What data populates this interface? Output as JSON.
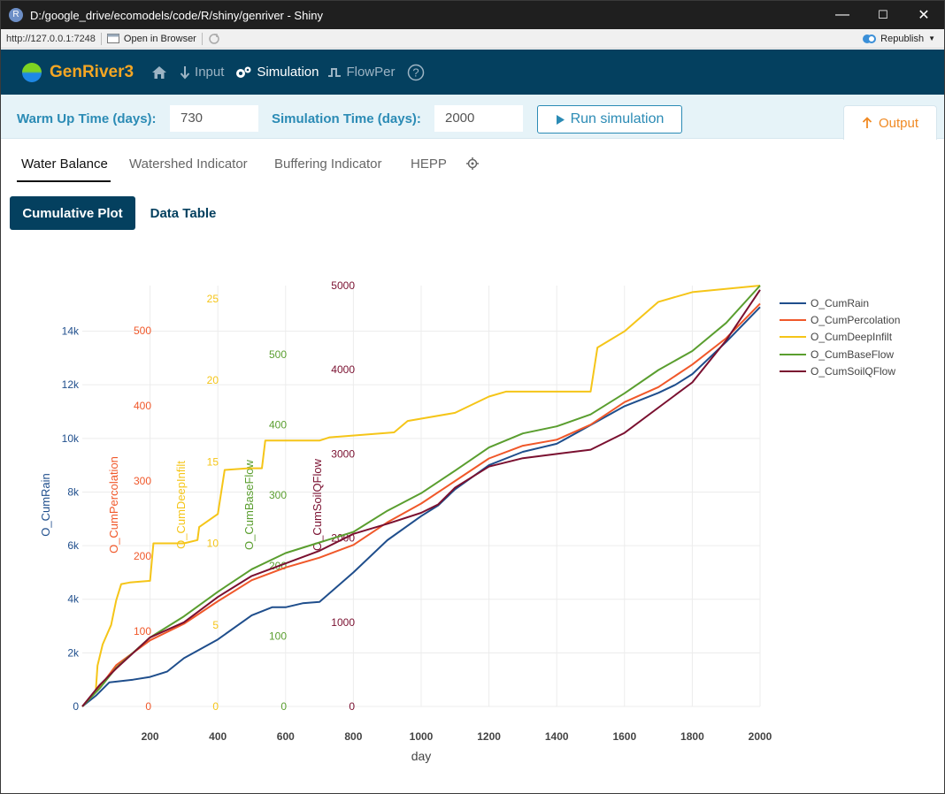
{
  "window": {
    "app_icon_letter": "R",
    "title": "D:/google_drive/ecomodels/code/R/shiny/genriver - Shiny",
    "controls": [
      "—",
      "☐",
      "✕"
    ]
  },
  "addressbar": {
    "url": "http://127.0.0.1:7248",
    "open_browser_label": "Open in Browser",
    "republish_label": "Republish"
  },
  "navbar": {
    "brand": "GenRiver3",
    "items": [
      {
        "label": "",
        "icon": "home-icon"
      },
      {
        "label": "Input",
        "icon": "arrow-down-icon"
      },
      {
        "label": "Simulation",
        "icon": "gears-icon"
      },
      {
        "label": "FlowPer",
        "icon": "flow-icon"
      },
      {
        "label": "",
        "icon": "help-icon"
      }
    ]
  },
  "settings": {
    "warmup_label": "Warm Up Time (days):",
    "warmup_value": "730",
    "simulation_label": "Simulation Time (days):",
    "simulation_value": "2000",
    "run_label": "Run simulation",
    "output_label": "Output"
  },
  "subtabs": [
    "Water Balance",
    "Watershed Indicator",
    "Buffering Indicator",
    "HEPP"
  ],
  "pills": {
    "cumulative": "Cumulative Plot",
    "table": "Data Table"
  },
  "colors": {
    "navbar": "#04405f",
    "accent": "#2b8bb5",
    "output": "#f08a24",
    "rain": "#1f4e8c",
    "percolation": "#f0582a",
    "deepinfilt": "#f5c518",
    "baseflow": "#5a9e2f",
    "soilqflow": "#7a1030"
  },
  "chart_data": {
    "type": "line",
    "xlabel": "day",
    "x_ticks": [
      200,
      400,
      600,
      800,
      1000,
      1200,
      1400,
      1600,
      1800,
      2000
    ],
    "xlim": [
      0,
      2000
    ],
    "grid": true,
    "legend_position": "right",
    "axes": [
      {
        "name": "O_CumRain",
        "ticks": [
          "0",
          "2k",
          "4k",
          "6k",
          "8k",
          "10k",
          "12k",
          "14k"
        ],
        "tick_values": [
          0,
          2000,
          4000,
          6000,
          8000,
          10000,
          12000,
          14000
        ],
        "range": [
          0,
          15700
        ]
      },
      {
        "name": "O_CumPercolation",
        "ticks": [
          "0",
          "100",
          "200",
          "300",
          "400",
          "500"
        ],
        "tick_values": [
          0,
          100,
          200,
          300,
          400,
          500
        ],
        "range": [
          0,
          560
        ]
      },
      {
        "name": "O_CumDeepInfilt",
        "ticks": [
          "0",
          "5",
          "10",
          "15",
          "20",
          "25"
        ],
        "tick_values": [
          0,
          5,
          10,
          15,
          20,
          25
        ],
        "range": [
          0,
          25.8
        ]
      },
      {
        "name": "O_CumBaseFlow",
        "ticks": [
          "0",
          "100",
          "200",
          "300",
          "400",
          "500"
        ],
        "tick_values": [
          0,
          100,
          200,
          300,
          400,
          500
        ],
        "range": [
          0,
          598
        ]
      },
      {
        "name": "O_CumSoilQFlow",
        "ticks": [
          "0",
          "1000",
          "2000",
          "3000",
          "4000",
          "5000"
        ],
        "tick_values": [
          0,
          1000,
          2000,
          3000,
          4000,
          5000
        ],
        "range": [
          0,
          5000
        ]
      }
    ],
    "series": [
      {
        "name": "O_CumRain",
        "axis": 0,
        "points": [
          [
            0,
            0
          ],
          [
            40,
            400
          ],
          [
            80,
            900
          ],
          [
            150,
            1000
          ],
          [
            200,
            1100
          ],
          [
            250,
            1300
          ],
          [
            300,
            1800
          ],
          [
            400,
            2500
          ],
          [
            500,
            3400
          ],
          [
            560,
            3700
          ],
          [
            600,
            3700
          ],
          [
            650,
            3850
          ],
          [
            700,
            3900
          ],
          [
            800,
            5000
          ],
          [
            900,
            6200
          ],
          [
            1000,
            7100
          ],
          [
            1050,
            7500
          ],
          [
            1100,
            8100
          ],
          [
            1200,
            9000
          ],
          [
            1300,
            9500
          ],
          [
            1400,
            9800
          ],
          [
            1500,
            10500
          ],
          [
            1600,
            11200
          ],
          [
            1700,
            11700
          ],
          [
            1750,
            12000
          ],
          [
            1800,
            12400
          ],
          [
            1900,
            13600
          ],
          [
            2000,
            14900
          ]
        ]
      },
      {
        "name": "O_CumPercolation",
        "axis": 1,
        "points": [
          [
            0,
            0
          ],
          [
            50,
            25
          ],
          [
            100,
            55
          ],
          [
            200,
            88
          ],
          [
            300,
            110
          ],
          [
            400,
            140
          ],
          [
            500,
            168
          ],
          [
            600,
            185
          ],
          [
            700,
            198
          ],
          [
            800,
            215
          ],
          [
            900,
            245
          ],
          [
            1000,
            270
          ],
          [
            1100,
            300
          ],
          [
            1200,
            330
          ],
          [
            1300,
            347
          ],
          [
            1400,
            355
          ],
          [
            1500,
            375
          ],
          [
            1600,
            405
          ],
          [
            1700,
            425
          ],
          [
            1800,
            455
          ],
          [
            1900,
            490
          ],
          [
            2000,
            536
          ]
        ]
      },
      {
        "name": "O_CumDeepInfilt",
        "axis": 2,
        "points": [
          [
            0,
            0
          ],
          [
            40,
            1
          ],
          [
            45,
            2.5
          ],
          [
            60,
            3.8
          ],
          [
            85,
            5
          ],
          [
            100,
            6.5
          ],
          [
            115,
            7.5
          ],
          [
            140,
            7.6
          ],
          [
            200,
            7.7
          ],
          [
            210,
            10
          ],
          [
            300,
            10
          ],
          [
            340,
            10.2
          ],
          [
            345,
            11
          ],
          [
            400,
            11.8
          ],
          [
            420,
            14.5
          ],
          [
            490,
            14.6
          ],
          [
            530,
            14.6
          ],
          [
            540,
            16.3
          ],
          [
            700,
            16.3
          ],
          [
            730,
            16.5
          ],
          [
            920,
            16.8
          ],
          [
            960,
            17.5
          ],
          [
            1100,
            18
          ],
          [
            1200,
            19
          ],
          [
            1250,
            19.3
          ],
          [
            1500,
            19.3
          ],
          [
            1520,
            22
          ],
          [
            1600,
            23
          ],
          [
            1700,
            24.8
          ],
          [
            1800,
            25.4
          ],
          [
            2000,
            25.8
          ]
        ]
      },
      {
        "name": "O_CumBaseFlow",
        "axis": 3,
        "points": [
          [
            0,
            0
          ],
          [
            50,
            25
          ],
          [
            100,
            55
          ],
          [
            200,
            98
          ],
          [
            300,
            128
          ],
          [
            400,
            163
          ],
          [
            500,
            195
          ],
          [
            600,
            218
          ],
          [
            700,
            233
          ],
          [
            800,
            248
          ],
          [
            900,
            278
          ],
          [
            1000,
            303
          ],
          [
            1100,
            335
          ],
          [
            1200,
            368
          ],
          [
            1300,
            388
          ],
          [
            1400,
            398
          ],
          [
            1500,
            415
          ],
          [
            1600,
            445
          ],
          [
            1700,
            478
          ],
          [
            1800,
            505
          ],
          [
            1900,
            545
          ],
          [
            2000,
            598
          ]
        ]
      },
      {
        "name": "O_CumSoilQFlow",
        "axis": 4,
        "points": [
          [
            0,
            0
          ],
          [
            50,
            250
          ],
          [
            100,
            450
          ],
          [
            200,
            820
          ],
          [
            300,
            1000
          ],
          [
            400,
            1300
          ],
          [
            500,
            1550
          ],
          [
            600,
            1700
          ],
          [
            700,
            1850
          ],
          [
            800,
            2050
          ],
          [
            900,
            2170
          ],
          [
            1000,
            2300
          ],
          [
            1050,
            2400
          ],
          [
            1100,
            2600
          ],
          [
            1200,
            2850
          ],
          [
            1300,
            2950
          ],
          [
            1400,
            3000
          ],
          [
            1500,
            3050
          ],
          [
            1600,
            3250
          ],
          [
            1700,
            3550
          ],
          [
            1800,
            3850
          ],
          [
            1900,
            4350
          ],
          [
            2000,
            4950
          ]
        ]
      }
    ]
  }
}
